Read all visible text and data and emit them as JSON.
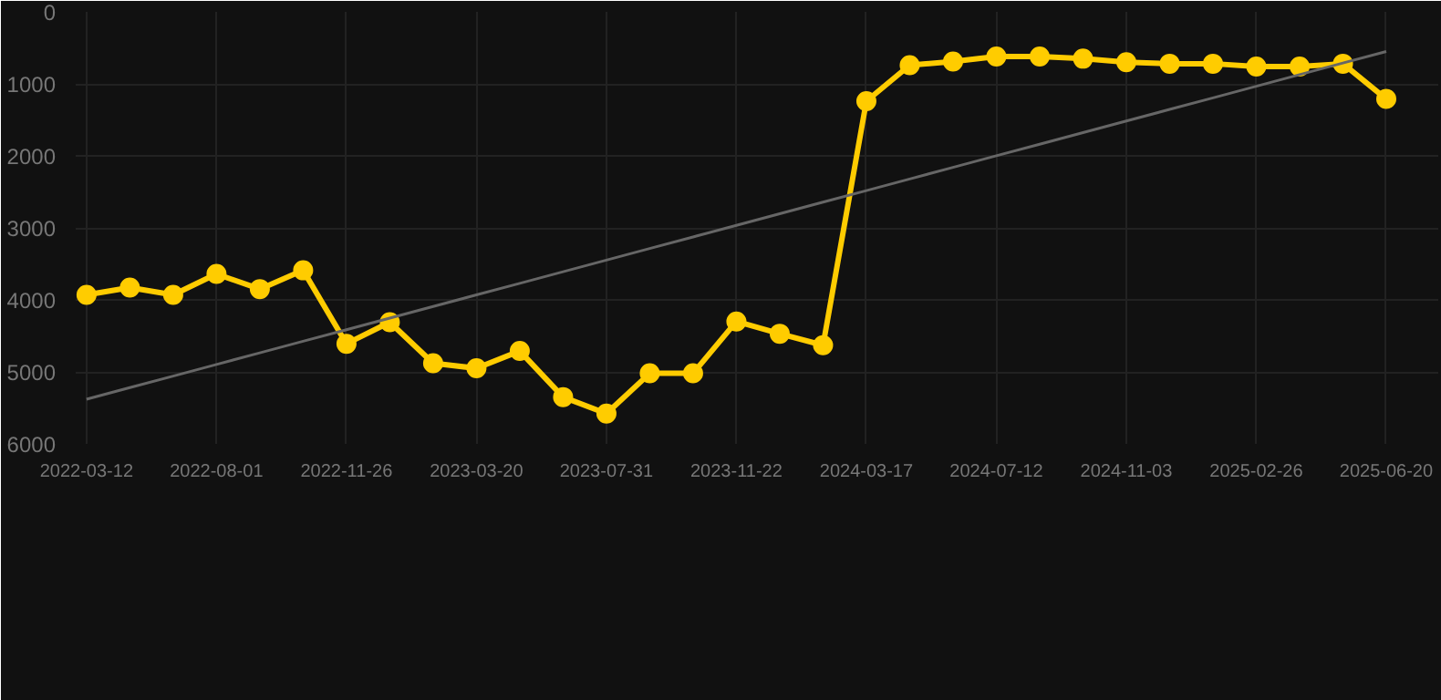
{
  "chart_data": {
    "type": "line",
    "categories": [
      "2022-03-12",
      null,
      null,
      "2022-08-01",
      null,
      null,
      "2022-11-26",
      null,
      null,
      "2023-03-20",
      null,
      null,
      "2023-07-31",
      null,
      null,
      "2023-11-22",
      null,
      null,
      "2024-03-17",
      null,
      null,
      "2024-07-12",
      null,
      null,
      "2024-11-03",
      null,
      null,
      "2025-02-26",
      null,
      null,
      "2025-06-20"
    ],
    "series": [
      {
        "color": "#ffcc00",
        "values": [
          3930,
          3830,
          3930,
          3640,
          3850,
          3590,
          4610,
          4310,
          4880,
          4950,
          4710,
          5350,
          5580,
          5020,
          5020,
          4300,
          4470,
          4630,
          1240,
          740,
          690,
          620,
          620,
          650,
          700,
          720,
          720,
          760,
          760,
          720,
          1210
        ]
      },
      {
        "type": "line",
        "color": "#666666",
        "marker": "none",
        "values": [
          5380,
          5219,
          5058,
          4897,
          4736,
          4575,
          4414,
          4253,
          4092,
          3931,
          3770,
          3609,
          3448,
          3287,
          3126,
          2965,
          2804,
          2643,
          2482,
          2321,
          2160,
          1999,
          1838,
          1677,
          1516,
          1355,
          1194,
          1033,
          872,
          711,
          550
        ]
      }
    ],
    "ylim": [
      6000,
      0
    ],
    "yticks": [
      0,
      1000,
      2000,
      3000,
      4000,
      5000,
      6000
    ],
    "grid": true,
    "marker": "circle"
  }
}
